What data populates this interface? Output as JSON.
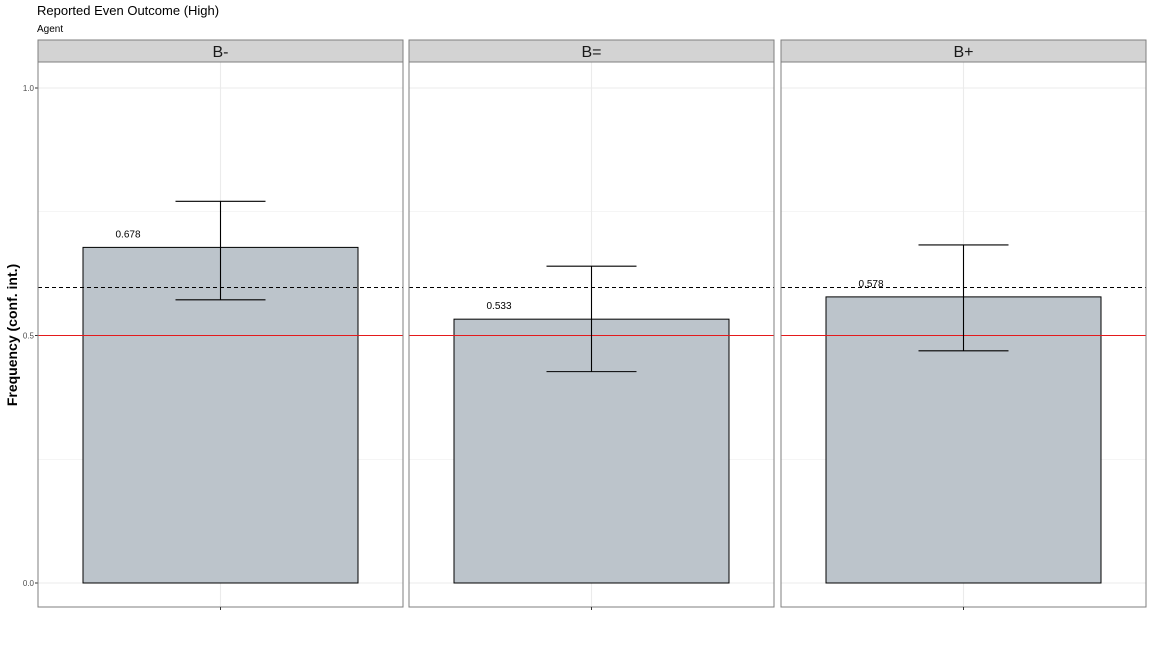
{
  "chart_data": {
    "type": "bar",
    "title": "Reported Even Outcome (High)",
    "subtitle": "Agent",
    "ylabel": "Frequency (conf. int.)",
    "xlabel": "",
    "ylim": [
      -0.05,
      1.05
    ],
    "yticks": [
      0.0,
      0.5,
      1.0
    ],
    "ytick_labels": [
      "0.0",
      "0.5",
      "1.0"
    ],
    "grid": true,
    "reference_lines": [
      {
        "value": 0.5,
        "style": "solid",
        "color": "#e41a1c"
      },
      {
        "value": 0.597,
        "style": "dashed",
        "color": "#000000"
      }
    ],
    "panels": [
      {
        "facet": "B-",
        "value": 0.678,
        "ci_low": 0.572,
        "ci_high": 0.771,
        "label": "0.678"
      },
      {
        "facet": "B=",
        "value": 0.533,
        "ci_low": 0.427,
        "ci_high": 0.64,
        "label": "0.533"
      },
      {
        "facet": "B+",
        "value": 0.578,
        "ci_low": 0.469,
        "ci_high": 0.683,
        "label": "0.578"
      }
    ],
    "colors": {
      "bar_fill": "#bcc4cb",
      "bar_stroke": "#000000",
      "strip_fill": "#d3d3d3",
      "grid": "#ebebeb",
      "panel_border": "#7f7f7f"
    }
  }
}
